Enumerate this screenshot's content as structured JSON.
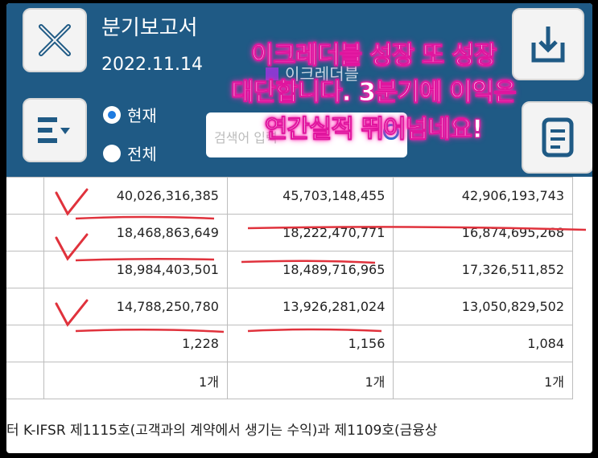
{
  "header": {
    "title": "분기보고서",
    "date": "2022.11.14",
    "radio_current": "현재",
    "radio_all": "전체",
    "search_placeholder": "검색어 입력",
    "partial_text": "이크레더블"
  },
  "overlay": {
    "line1": "이크레더블 성장 또 성장",
    "line2": "대단합니다. 3분기에 이익은",
    "line3": "연간실적 뛰어넘네요!"
  },
  "table": {
    "rows": [
      {
        "a": "40,026,316,385",
        "b": "45,703,148,455",
        "c": "42,906,193,743"
      },
      {
        "a": "18,468,863,649",
        "b": "18,222,470,771",
        "c": "16,874,695,268"
      },
      {
        "a": "18,984,403,501",
        "b": "18,489,716,965",
        "c": "17,326,511,852"
      },
      {
        "a": "14,788,250,780",
        "b": "13,926,281,024",
        "c": "13,050,829,502"
      },
      {
        "a": "1,228",
        "b": "1,156",
        "c": "1,084"
      },
      {
        "a": "1개",
        "b": "1개",
        "c": "1개"
      }
    ]
  },
  "footer": {
    "text": "터 K-IFSR 제1115호(고객과의 계약에서 생기는 수익)과 제1109호(금융상"
  },
  "colors": {
    "header_bg": "#1f5a85",
    "accent_blue": "#1e7be0",
    "annotation_red": "#e0323c",
    "overlay_glow": "#ff2bb5"
  }
}
